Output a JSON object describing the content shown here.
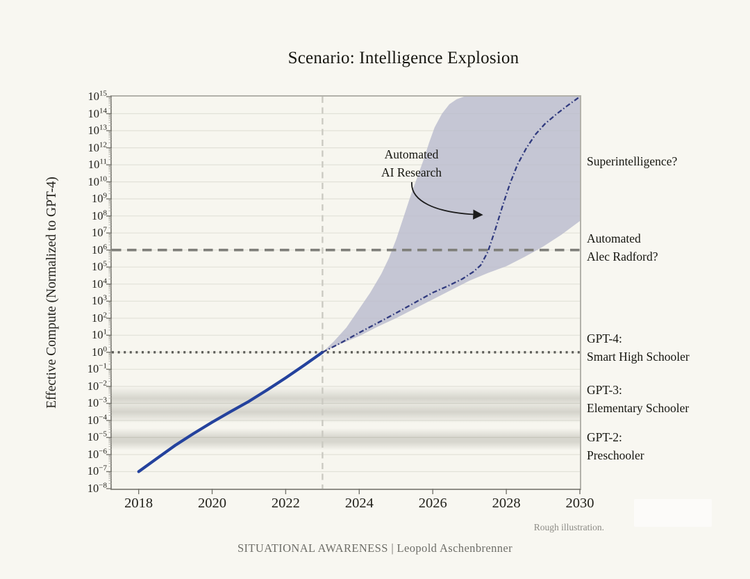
{
  "title": "Scenario: Intelligence Explosion",
  "y_axis_label": "Effective Compute (Normalized to GPT-4)",
  "annotation": {
    "line1": "Automated",
    "line2": "AI Research"
  },
  "right_labels": {
    "superintelligence": "Superintelligence?",
    "radford_1": "Automated",
    "radford_2": "Alec Radford?",
    "gpt4_1": "GPT-4:",
    "gpt4_2": "Smart High Schooler",
    "gpt3_1": "GPT-3:",
    "gpt3_2": "Elementary Schooler",
    "gpt2_1": "GPT-2:",
    "gpt2_2": "Preschooler"
  },
  "footer": {
    "rough_note": "Rough illustration.",
    "brand": "SITUATIONAL AWARENESS | Leopold Aschenbrenner"
  },
  "chart_data": {
    "type": "line",
    "title": "Scenario: Intelligence Explosion",
    "xlabel": "",
    "ylabel": "Effective Compute (Normalized to GPT-4)",
    "y_scale": "log10",
    "x_range": [
      2017.27,
      2030
    ],
    "y_exponent_range": [
      -8,
      15
    ],
    "x_ticks": [
      2018,
      2020,
      2022,
      2024,
      2026,
      2028,
      2030
    ],
    "y_tick_exponents": [
      15,
      14,
      13,
      12,
      11,
      10,
      9,
      8,
      7,
      6,
      5,
      4,
      3,
      2,
      1,
      0,
      -1,
      -2,
      -3,
      -4,
      -5,
      -6,
      -7,
      -8
    ],
    "grid": "horizontal-decades",
    "colors": {
      "background": "#f8f7f1",
      "historical_line": "#24429d",
      "projection_line": "#303a7e",
      "uncertainty_band": "#b7b8cc",
      "dashed_reference": "#7e7e79",
      "dotted_reference": "#5c5c57",
      "vertical_dashed": "#cbcac2",
      "gridline": "#e2e1d8"
    },
    "series": [
      {
        "name": "historical-effective-compute",
        "style": "solid",
        "points": [
          [
            2018,
            -7
          ],
          [
            2018.5,
            -6.22
          ],
          [
            2019,
            -5.45
          ],
          [
            2019.5,
            -4.76
          ],
          [
            2020,
            -4.1
          ],
          [
            2020.5,
            -3.48
          ],
          [
            2021,
            -2.88
          ],
          [
            2021.5,
            -2.2
          ],
          [
            2022,
            -1.5
          ],
          [
            2022.5,
            -0.76
          ],
          [
            2023,
            0
          ]
        ]
      },
      {
        "name": "projected-effective-compute",
        "style": "dash-dot",
        "points": [
          [
            2023,
            0
          ],
          [
            2023.5,
            0.55
          ],
          [
            2024,
            1.15
          ],
          [
            2024.5,
            1.72
          ],
          [
            2025,
            2.3
          ],
          [
            2025.5,
            2.9
          ],
          [
            2026,
            3.5
          ],
          [
            2026.4,
            3.88
          ],
          [
            2026.8,
            4.3
          ],
          [
            2027.1,
            4.72
          ],
          [
            2027.3,
            5.1
          ],
          [
            2027.5,
            5.9
          ],
          [
            2027.7,
            7.2
          ],
          [
            2027.9,
            8.6
          ],
          [
            2028.1,
            9.9
          ],
          [
            2028.3,
            11.0
          ],
          [
            2028.55,
            12.0
          ],
          [
            2028.8,
            12.8
          ],
          [
            2029.05,
            13.4
          ],
          [
            2029.35,
            13.95
          ],
          [
            2029.65,
            14.45
          ],
          [
            2030,
            15
          ]
        ]
      }
    ],
    "uncertainty_band": {
      "upper": [
        [
          2023,
          0
        ],
        [
          2023.3,
          0.62
        ],
        [
          2023.65,
          1.45
        ],
        [
          2024,
          2.55
        ],
        [
          2024.3,
          3.5
        ],
        [
          2024.6,
          4.6
        ],
        [
          2024.8,
          5.5
        ],
        [
          2025,
          6.6
        ],
        [
          2025.2,
          7.9
        ],
        [
          2025.4,
          9.2
        ],
        [
          2025.6,
          10.4
        ],
        [
          2025.75,
          11.3
        ],
        [
          2025.9,
          12.3
        ],
        [
          2026.05,
          13.2
        ],
        [
          2026.25,
          14.0
        ],
        [
          2026.45,
          14.55
        ],
        [
          2026.65,
          14.85
        ],
        [
          2026.85,
          15
        ]
      ],
      "lower": [
        [
          2023,
          0
        ],
        [
          2023.5,
          0.5
        ],
        [
          2024,
          0.95
        ],
        [
          2024.5,
          1.5
        ],
        [
          2025,
          2.0
        ],
        [
          2025.5,
          2.55
        ],
        [
          2026,
          3.1
        ],
        [
          2026.5,
          3.65
        ],
        [
          2027,
          4.2
        ],
        [
          2027.5,
          4.65
        ],
        [
          2028,
          5.05
        ],
        [
          2028.5,
          5.6
        ],
        [
          2029,
          6.2
        ],
        [
          2029.5,
          6.9
        ],
        [
          2030,
          7.7
        ]
      ]
    },
    "reference_lines": [
      {
        "name": "gpt4-level",
        "exponent": 0,
        "style": "dotted",
        "label": "GPT-4: Smart High Schooler"
      },
      {
        "name": "automated-researcher-level",
        "exponent": 6,
        "style": "dashed",
        "label": "Automated Alec Radford?"
      },
      {
        "name": "forecast-start",
        "x": 2023,
        "style": "vertical-dashed"
      }
    ],
    "reference_bands": [
      {
        "name": "gpt3-level",
        "label": "GPT-3: Elementary Schooler",
        "top_exponent": -2.0,
        "bottom_exponent": -4.15,
        "stops": [
          [
            0,
            0
          ],
          [
            0.33,
            0.26
          ],
          [
            0.5,
            0.13
          ],
          [
            0.7,
            0.27
          ],
          [
            1,
            0
          ]
        ]
      },
      {
        "name": "gpt2-level",
        "label": "GPT-2: Preschooler",
        "top_exponent": -4.45,
        "bottom_exponent": -5.75,
        "stops": [
          [
            0,
            0
          ],
          [
            0.42,
            0.25
          ],
          [
            0.62,
            0.25
          ],
          [
            1,
            0
          ]
        ]
      }
    ]
  }
}
